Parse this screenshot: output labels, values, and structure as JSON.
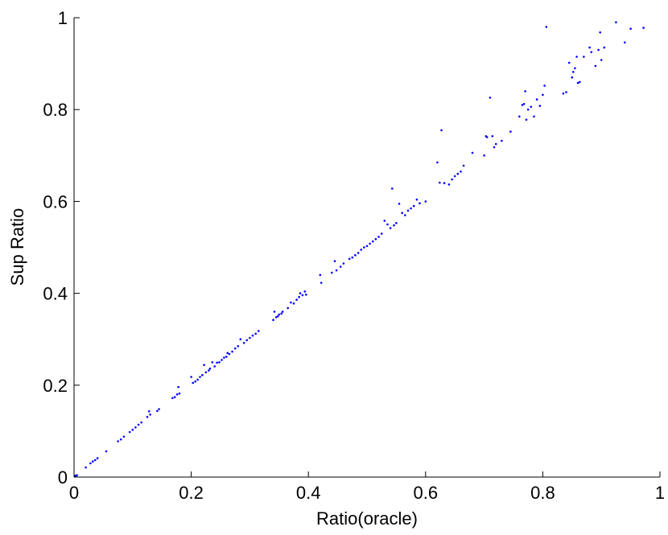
{
  "chart_data": {
    "type": "scatter",
    "title": "",
    "xlabel": "Ratio(oracle)",
    "ylabel": "Sup Ratio",
    "xlim": [
      0,
      1
    ],
    "ylim": [
      0,
      1
    ],
    "x_ticks": [
      "0",
      "0.2",
      "0.4",
      "0.6",
      "0.8",
      "1"
    ],
    "y_ticks": [
      "0",
      "0.2",
      "0.4",
      "0.6",
      "0.8",
      "1"
    ],
    "grid": false,
    "marker_color": "#0000ff",
    "series": [
      {
        "points": [
          [
            0.002,
            0.003
          ],
          [
            0.003,
            0.002
          ],
          [
            0.005,
            0.004
          ],
          [
            0.02,
            0.021
          ],
          [
            0.028,
            0.03
          ],
          [
            0.032,
            0.034
          ],
          [
            0.036,
            0.037
          ],
          [
            0.04,
            0.041
          ],
          [
            0.055,
            0.056
          ],
          [
            0.075,
            0.078
          ],
          [
            0.08,
            0.082
          ],
          [
            0.085,
            0.088
          ],
          [
            0.095,
            0.098
          ],
          [
            0.1,
            0.103
          ],
          [
            0.105,
            0.108
          ],
          [
            0.11,
            0.114
          ],
          [
            0.115,
            0.119
          ],
          [
            0.125,
            0.131
          ],
          [
            0.128,
            0.143
          ],
          [
            0.13,
            0.136
          ],
          [
            0.142,
            0.144
          ],
          [
            0.145,
            0.148
          ],
          [
            0.168,
            0.172
          ],
          [
            0.172,
            0.174
          ],
          [
            0.176,
            0.18
          ],
          [
            0.178,
            0.196
          ],
          [
            0.18,
            0.182
          ],
          [
            0.2,
            0.218
          ],
          [
            0.203,
            0.205
          ],
          [
            0.207,
            0.208
          ],
          [
            0.211,
            0.212
          ],
          [
            0.215,
            0.218
          ],
          [
            0.219,
            0.222
          ],
          [
            0.222,
            0.244
          ],
          [
            0.225,
            0.228
          ],
          [
            0.23,
            0.232
          ],
          [
            0.232,
            0.236
          ],
          [
            0.236,
            0.25
          ],
          [
            0.24,
            0.241
          ],
          [
            0.244,
            0.249
          ],
          [
            0.248,
            0.25
          ],
          [
            0.252,
            0.255
          ],
          [
            0.256,
            0.26
          ],
          [
            0.26,
            0.262
          ],
          [
            0.262,
            0.27
          ],
          [
            0.265,
            0.268
          ],
          [
            0.27,
            0.273
          ],
          [
            0.275,
            0.28
          ],
          [
            0.28,
            0.285
          ],
          [
            0.284,
            0.3
          ],
          [
            0.29,
            0.292
          ],
          [
            0.295,
            0.298
          ],
          [
            0.3,
            0.303
          ],
          [
            0.305,
            0.308
          ],
          [
            0.31,
            0.312
          ],
          [
            0.315,
            0.318
          ],
          [
            0.34,
            0.342
          ],
          [
            0.342,
            0.36
          ],
          [
            0.345,
            0.348
          ],
          [
            0.348,
            0.35
          ],
          [
            0.35,
            0.354
          ],
          [
            0.354,
            0.356
          ],
          [
            0.356,
            0.36
          ],
          [
            0.365,
            0.368
          ],
          [
            0.37,
            0.38
          ],
          [
            0.375,
            0.378
          ],
          [
            0.38,
            0.386
          ],
          [
            0.384,
            0.392
          ],
          [
            0.386,
            0.4
          ],
          [
            0.39,
            0.396
          ],
          [
            0.394,
            0.404
          ],
          [
            0.396,
            0.397
          ],
          [
            0.42,
            0.44
          ],
          [
            0.422,
            0.423
          ],
          [
            0.44,
            0.445
          ],
          [
            0.445,
            0.47
          ],
          [
            0.448,
            0.45
          ],
          [
            0.455,
            0.458
          ],
          [
            0.46,
            0.465
          ],
          [
            0.47,
            0.475
          ],
          [
            0.475,
            0.478
          ],
          [
            0.48,
            0.483
          ],
          [
            0.485,
            0.488
          ],
          [
            0.49,
            0.495
          ],
          [
            0.495,
            0.5
          ],
          [
            0.5,
            0.503
          ],
          [
            0.505,
            0.508
          ],
          [
            0.51,
            0.513
          ],
          [
            0.515,
            0.518
          ],
          [
            0.52,
            0.523
          ],
          [
            0.525,
            0.53
          ],
          [
            0.53,
            0.558
          ],
          [
            0.535,
            0.55
          ],
          [
            0.54,
            0.542
          ],
          [
            0.543,
            0.628
          ],
          [
            0.546,
            0.548
          ],
          [
            0.55,
            0.553
          ],
          [
            0.555,
            0.595
          ],
          [
            0.56,
            0.575
          ],
          [
            0.565,
            0.57
          ],
          [
            0.57,
            0.58
          ],
          [
            0.575,
            0.585
          ],
          [
            0.58,
            0.59
          ],
          [
            0.585,
            0.604
          ],
          [
            0.59,
            0.596
          ],
          [
            0.6,
            0.6
          ],
          [
            0.62,
            0.685
          ],
          [
            0.624,
            0.641
          ],
          [
            0.627,
            0.755
          ],
          [
            0.632,
            0.64
          ],
          [
            0.64,
            0.637
          ],
          [
            0.645,
            0.648
          ],
          [
            0.65,
            0.655
          ],
          [
            0.655,
            0.66
          ],
          [
            0.66,
            0.665
          ],
          [
            0.665,
            0.678
          ],
          [
            0.68,
            0.706
          ],
          [
            0.7,
            0.7
          ],
          [
            0.703,
            0.742
          ],
          [
            0.705,
            0.74
          ],
          [
            0.71,
            0.826
          ],
          [
            0.714,
            0.742
          ],
          [
            0.717,
            0.718
          ],
          [
            0.72,
            0.725
          ],
          [
            0.73,
            0.732
          ],
          [
            0.745,
            0.752
          ],
          [
            0.76,
            0.785
          ],
          [
            0.765,
            0.81
          ],
          [
            0.768,
            0.812
          ],
          [
            0.77,
            0.84
          ],
          [
            0.772,
            0.778
          ],
          [
            0.775,
            0.8
          ],
          [
            0.78,
            0.806
          ],
          [
            0.785,
            0.785
          ],
          [
            0.79,
            0.822
          ],
          [
            0.795,
            0.808
          ],
          [
            0.8,
            0.832
          ],
          [
            0.803,
            0.852
          ],
          [
            0.806,
            0.98
          ],
          [
            0.835,
            0.835
          ],
          [
            0.84,
            0.838
          ],
          [
            0.845,
            0.902
          ],
          [
            0.85,
            0.87
          ],
          [
            0.852,
            0.882
          ],
          [
            0.855,
            0.89
          ],
          [
            0.858,
            0.915
          ],
          [
            0.86,
            0.858
          ],
          [
            0.863,
            0.86
          ],
          [
            0.87,
            0.915
          ],
          [
            0.88,
            0.935
          ],
          [
            0.883,
            0.925
          ],
          [
            0.89,
            0.895
          ],
          [
            0.895,
            0.93
          ],
          [
            0.898,
            0.968
          ],
          [
            0.9,
            0.908
          ],
          [
            0.905,
            0.935
          ],
          [
            0.925,
            0.99
          ],
          [
            0.94,
            0.946
          ],
          [
            0.95,
            0.976
          ],
          [
            0.972,
            0.978
          ]
        ]
      }
    ]
  }
}
